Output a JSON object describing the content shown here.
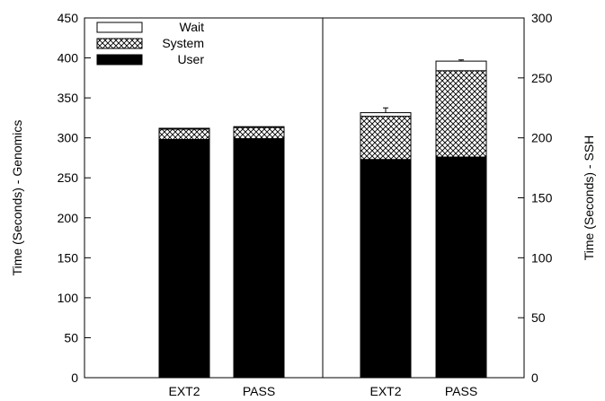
{
  "chart_data": {
    "type": "bar",
    "stacked": true,
    "series": [
      {
        "name": "User",
        "pattern": "solid-black"
      },
      {
        "name": "System",
        "pattern": "crosshatch"
      },
      {
        "name": "Wait",
        "pattern": "white"
      }
    ],
    "legend": {
      "placement": "top-left",
      "entries": [
        "Wait",
        "System",
        "User"
      ]
    },
    "panels": [
      {
        "axis": "left",
        "ylabel": "Time (Seconds) - Genomics",
        "ylim": [
          0,
          450
        ],
        "yticks": [
          0,
          50,
          100,
          150,
          200,
          250,
          300,
          350,
          400,
          450
        ],
        "categories": [
          "EXT2",
          "PASS"
        ],
        "values": {
          "User": [
            298,
            299
          ],
          "System": [
            13,
            14
          ],
          "Wait": [
            1,
            1
          ]
        },
        "error_bars": [
          null,
          null
        ]
      },
      {
        "axis": "right",
        "ylabel": "Time (Seconds) - SSH",
        "ylim": [
          0,
          300
        ],
        "yticks": [
          0,
          50,
          100,
          150,
          200,
          250,
          300
        ],
        "categories": [
          "EXT2",
          "PASS"
        ],
        "values": {
          "User": [
            182,
            184
          ],
          "System": [
            36,
            72
          ],
          "Wait": [
            3,
            8
          ]
        },
        "error_bars": [
          4,
          1
        ]
      }
    ],
    "grid": false,
    "colors": {
      "user": "#000000",
      "system_pattern": "#000000",
      "wait": "#ffffff",
      "axis": "#000000"
    }
  }
}
